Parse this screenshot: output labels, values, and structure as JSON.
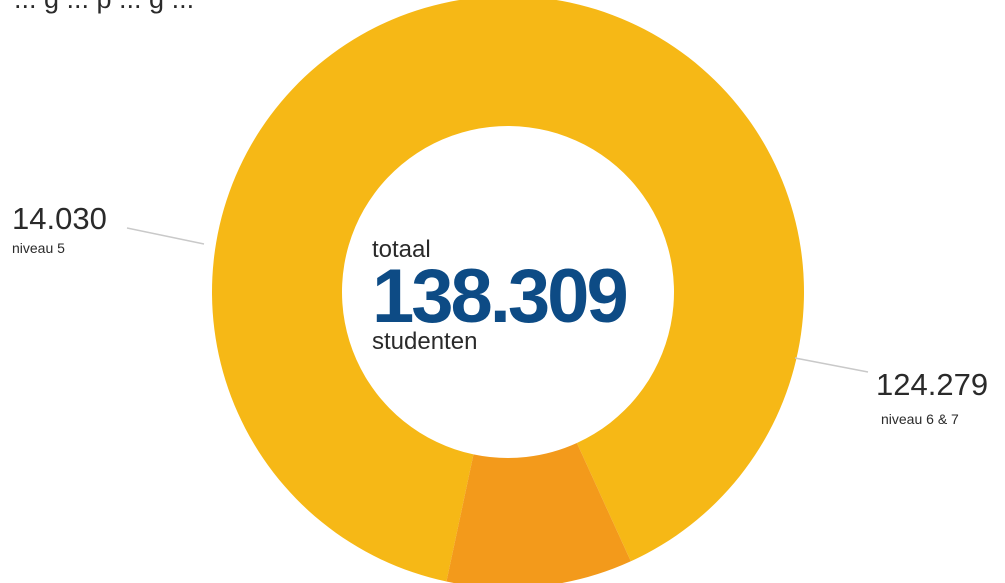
{
  "chart_data": {
    "type": "pie",
    "title": "",
    "title_visible_fragment": "... g ... p ... g ...",
    "donut": true,
    "center": {
      "top": "totaal",
      "value": "138.309",
      "bottom": "studenten"
    },
    "slices": [
      {
        "label": "niveau 6 & 7",
        "value": 124279,
        "value_label": "124.279",
        "color": "#f6b816"
      },
      {
        "label": "niveau 5",
        "value": 14030,
        "value_label": "14.030",
        "color": "#f39a1b"
      }
    ],
    "leader_line_color": "#c9c9c9"
  }
}
